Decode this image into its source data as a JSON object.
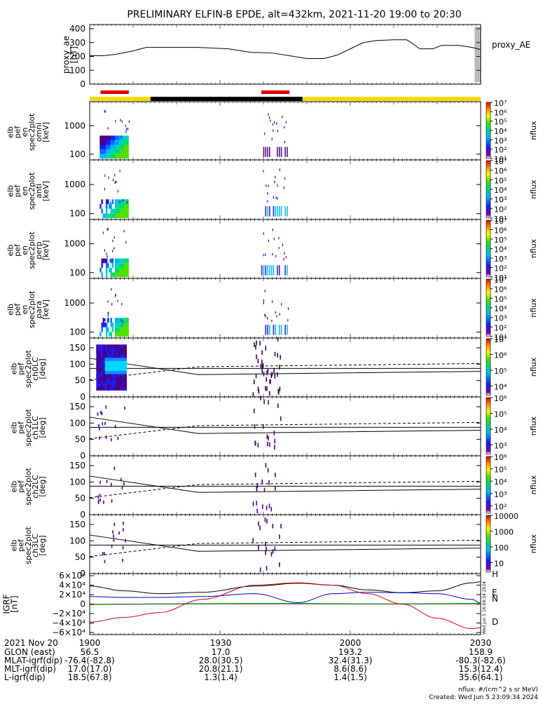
{
  "title": "PRELIMINARY ELFIN-B EPDE, alt=432km, 2021-11-20 19:00 to 20:30",
  "colors": {
    "bar_yellow": "#ffd700",
    "bar_black": "#000000",
    "bar_red": "#e00000",
    "igrf_h": "#000000",
    "igrf_e": "#00aa00",
    "igrf_n": "#0000cc",
    "igrf_d": "#d00000"
  },
  "ae_panel": {
    "ylabel": "proxy_ae\n[nT]",
    "legend": "proxy_AE",
    "ticks": [
      "400",
      "300",
      "200",
      "100",
      "0"
    ]
  },
  "spec_panels": [
    {
      "ylabel": "elb\npef\nen\nspec2plot\nomni\n[keV]",
      "ticks": [
        "1000",
        "100"
      ]
    },
    {
      "ylabel": "elb\npef\nen\nspec2plot\nanti\n[keV]",
      "ticks": [
        "1000",
        "100"
      ]
    },
    {
      "ylabel": "elb\npef\nen\nspec2plot\nperp\n[keV]",
      "ticks": [
        "1000",
        "100"
      ]
    },
    {
      "ylabel": "elb\npef\nen\nspec2plot\npara\n[keV]",
      "ticks": [
        "1000",
        "100"
      ]
    }
  ],
  "pa_panels": [
    {
      "ylabel": "elb\npef\nspec2plot\nch0LC\n[deg]",
      "ticks": [
        "150",
        "100",
        "50",
        "0"
      ]
    },
    {
      "ylabel": "elb\npef\nspec2plot\nch1LC\n[deg]",
      "ticks": [
        "150",
        "100",
        "50",
        "0"
      ]
    },
    {
      "ylabel": "elb\npef\nspec2plot\nch2LC\n[deg]",
      "ticks": [
        "150",
        "100",
        "50",
        "0"
      ]
    },
    {
      "ylabel": "elb\npef\nspec2plot\nch3LC\n[deg]",
      "ticks": [
        "150",
        "100",
        "50",
        "0"
      ]
    }
  ],
  "colorbars": [
    {
      "label": "nflux",
      "ticks": [
        "10⁷",
        "10⁶",
        "10⁵",
        "10⁴",
        "10³",
        "10²",
        "10¹"
      ]
    },
    {
      "label": "nflux",
      "ticks": [
        "10⁷",
        "10⁶",
        "10⁵",
        "10⁴",
        "10³",
        "10²",
        "10¹"
      ]
    },
    {
      "label": "nflux",
      "ticks": [
        "10⁷",
        "10⁶",
        "10⁵",
        "10⁴",
        "10³",
        "10²",
        "10¹"
      ]
    },
    {
      "label": "nflux",
      "ticks": [
        "10⁷",
        "10⁶",
        "10⁵",
        "10⁴",
        "10³",
        "10²",
        "10¹"
      ]
    },
    {
      "label": "nflux",
      "ticks": [
        "10⁷",
        "10⁶",
        "10⁵",
        "10⁴"
      ]
    },
    {
      "label": "nflux",
      "ticks": [
        "10⁶",
        "10⁵",
        "10⁴",
        "10³"
      ]
    },
    {
      "label": "nflux",
      "ticks": [
        "10⁶",
        "10⁵",
        "10⁴",
        "10³",
        "10²"
      ]
    },
    {
      "label": "nflux",
      "ticks": [
        "10000",
        "1000",
        "100",
        "10"
      ]
    }
  ],
  "igrf_panel": {
    "ylabel": "IGRF\n[nT]",
    "ticks": [
      "6×10⁴",
      "4×10⁴",
      "2×10⁴",
      "0",
      "−2×10⁴",
      "−4×10⁴",
      "−6×10⁴"
    ],
    "legend": [
      "H",
      "E",
      "N",
      "D"
    ],
    "side_text": "Wed Jun 5 16:08:34 2024"
  },
  "footer": {
    "date": "2021 Nov 20",
    "rows": [
      {
        "label": "GLON (east)",
        "values": [
          "56.5",
          "17.0",
          "193.2",
          "158.9"
        ]
      },
      {
        "label": "MLAT-igrf(dip)",
        "values": [
          "-76.4(-82.8)",
          "28.0(30.5)",
          "32.4(31.3)",
          "-80.3(-82.6)"
        ]
      },
      {
        "label": "MLT-igrf(dip)",
        "values": [
          "17.0(17.0)",
          "20.8(21.1)",
          "8.6(8.6)",
          "15.3(12.4)"
        ]
      },
      {
        "label": "L-igrf(dip)",
        "values": [
          "18.5(67.8)",
          "1.3(1.4)",
          "1.4(1.5)",
          "35.6(64.1)"
        ]
      }
    ],
    "time_labels": [
      "1900",
      "1930",
      "2000",
      "2030"
    ],
    "units_note": "nflux: #/(cm^2 s sr MeV)",
    "created": "Created: Wed Jun  5 23:09:34 2024"
  },
  "chart_data": {
    "type": "line",
    "title": "PRELIMINARY ELFIN-B EPDE, alt=432km, 2021-11-20 19:00 to 20:30",
    "x_unit": "minutes after 19:00 UT",
    "xlim": [
      0,
      90
    ],
    "x_ticks": [
      "1900",
      "1930",
      "2000",
      "2030"
    ],
    "orbit_bar": [
      {
        "from": 0,
        "to": 14,
        "color": "yellow"
      },
      {
        "from": 14,
        "to": 49,
        "color": "black"
      },
      {
        "from": 49,
        "to": 90,
        "color": "yellow"
      }
    ],
    "science_zones": [
      {
        "from": 2.5,
        "to": 9.0
      },
      {
        "from": 39.5,
        "to": 46.0
      }
    ],
    "proxy_ae": {
      "ylim": [
        0,
        400
      ],
      "x": [
        0,
        3,
        6,
        10,
        13,
        18,
        25,
        32,
        37,
        42,
        46,
        50,
        54,
        57,
        60,
        63,
        66,
        70,
        73,
        74,
        76,
        79,
        81,
        85,
        88,
        90
      ],
      "y": [
        205,
        205,
        215,
        240,
        265,
        265,
        265,
        255,
        230,
        225,
        205,
        185,
        185,
        210,
        255,
        300,
        315,
        320,
        320,
        300,
        255,
        255,
        280,
        280,
        265,
        250
      ]
    },
    "energy_ylim": [
      63,
      7000
    ],
    "pitch_ylim": [
      0,
      180
    ],
    "loss_cone_deg": {
      "x": [
        0,
        25,
        90
      ],
      "solid": [
        118,
        68,
        78
      ],
      "dashed": [
        52,
        92,
        102
      ],
      "solid_flat": [
        87,
        87,
        87
      ]
    },
    "igrf": {
      "ylim": [
        -60000,
        60000
      ],
      "x": [
        0,
        8,
        16,
        26,
        38,
        48,
        56,
        64,
        72,
        80,
        88,
        90
      ],
      "series": [
        {
          "name": "H",
          "values": [
            38000,
            28000,
            22000,
            25000,
            38000,
            44000,
            40000,
            30000,
            24000,
            28000,
            45000,
            47000
          ]
        },
        {
          "name": "E",
          "values": [
            -1000,
            -500,
            500,
            1000,
            1500,
            1500,
            1000,
            500,
            500,
            1000,
            1500,
            2000
          ]
        },
        {
          "name": "N",
          "values": [
            16000,
            14000,
            14000,
            16000,
            22000,
            3000,
            22000,
            25000,
            24000,
            22000,
            10000,
            2000
          ]
        },
        {
          "name": "D",
          "values": [
            -38000,
            -28000,
            -18000,
            10000,
            40000,
            45000,
            40000,
            22000,
            0,
            -30000,
            -52000,
            -50000
          ]
        }
      ]
    }
  }
}
